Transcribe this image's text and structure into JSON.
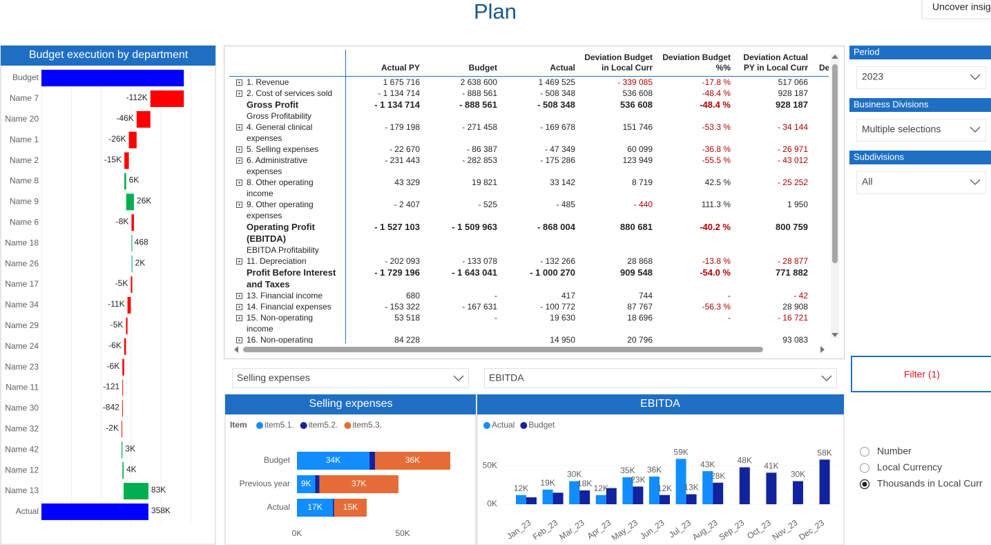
{
  "header": {
    "title": "Plan",
    "button": "Uncover insig"
  },
  "chart_data": [
    {
      "type": "waterfall",
      "title": "Budget execution by department",
      "categories": [
        "Budget",
        "Name 7",
        "Name 20",
        "Name 1",
        "Name 2",
        "Name 8",
        "Name 9",
        "Name 6",
        "Name 18",
        "Name 26",
        "Name 17",
        "Name 34",
        "Name 29",
        "Name 24",
        "Name 23",
        "Name 11",
        "Name 30",
        "Name 32",
        "Name 42",
        "Name 12",
        "Name 13",
        "Actual"
      ],
      "values": [
        476500,
        -112000,
        -46000,
        -26000,
        -15000,
        6000,
        26000,
        -8000,
        468,
        2000,
        -5000,
        -11000,
        -5000,
        -6000,
        -6000,
        -121,
        -842,
        -2000,
        3000,
        4000,
        83000,
        358000
      ],
      "value_labels": [
        null,
        "-112K",
        "-46K",
        "-26K",
        "-15K",
        "6K",
        "26K",
        "-8K",
        "468",
        "2K",
        "-5K",
        "-11K",
        "-5K",
        "-6K",
        "-6K",
        "-121",
        "-842",
        "-2K",
        "3K",
        "4K",
        "83K",
        "358K"
      ],
      "colors": {
        "total": "#0000ff",
        "increase": "#00b050",
        "decrease": "#ff0000"
      },
      "xlim": [
        0,
        550000
      ],
      "xticks": [
        0,
        100000,
        200000,
        300000,
        400000,
        500000
      ],
      "grid": true
    },
    {
      "type": "stacked_hbar",
      "title": "Selling expenses",
      "legend_title": "Item",
      "categories": [
        "Budget",
        "Previous year",
        "Actual"
      ],
      "series": [
        {
          "name": "item5.1.",
          "color": "#118dff",
          "values": [
            34300,
            8600,
            17000
          ],
          "value_labels": [
            "34K",
            "9K",
            "17K"
          ]
        },
        {
          "name": "item5.2.",
          "color": "#12239e",
          "values": [
            2600,
            2000,
            600
          ],
          "value_labels": [
            null,
            null,
            null
          ]
        },
        {
          "name": "item5.3.",
          "color": "#e66c37",
          "values": [
            35600,
            37400,
            15400
          ],
          "value_labels": [
            "36K",
            "37K",
            "15K"
          ]
        }
      ],
      "xlim": [
        0,
        80000
      ],
      "xticks": [
        {
          "value": 0,
          "label": "0K"
        },
        {
          "value": 50000,
          "label": "50K"
        }
      ]
    },
    {
      "type": "grouped_bar",
      "title": "EBITDA",
      "categories": [
        "Jan_23",
        "Feb_23",
        "Mar_23",
        "Apr_23",
        "May_23",
        "Jun_23",
        "Jul_23",
        "Aug_23",
        "Sep_23",
        "Oct_23",
        "Nov_23",
        "Dec_23"
      ],
      "series": [
        {
          "name": "Actual",
          "color": "#118dff",
          "values": [
            12000,
            19000,
            30000,
            12000,
            35000,
            36000,
            59000,
            43000,
            null,
            null,
            null,
            null
          ],
          "value_labels": [
            "12K",
            "19K",
            "30K",
            "12K",
            "35K",
            "36K",
            "59K",
            "43K",
            null,
            null,
            null,
            null
          ]
        },
        {
          "name": "Budget",
          "color": "#12239e",
          "values": [
            9000,
            15000,
            18000,
            21000,
            23000,
            12000,
            13000,
            28000,
            48000,
            41000,
            30000,
            58000
          ],
          "value_labels": [
            null,
            null,
            "18K",
            null,
            "23K",
            "12K",
            "13K",
            "28K",
            "48K",
            "41K",
            "30K",
            "58K"
          ]
        }
      ],
      "ylim": [
        0,
        70000
      ],
      "yticks": [
        {
          "value": 0,
          "label": "0K"
        },
        {
          "value": 50000,
          "label": "50K"
        }
      ],
      "grid": true
    }
  ],
  "table": {
    "columns": [
      "Actual PY",
      "Budget",
      "Actual",
      "Deviation Budget in Local Curr",
      "Deviation Budget %%",
      "Deviation Actual PY in Local Curr",
      "De"
    ],
    "rows": [
      {
        "label": "1. Revenue",
        "cells": [
          "1 675 716",
          "2 638 600",
          "1 469 525",
          "- 339 085",
          "-17.8 %",
          "517 066"
        ]
      },
      {
        "label": "2. Cost of services sold",
        "cells": [
          "- 1 134 714",
          "- 888 561",
          "- 508 348",
          "536 608",
          "-48.4 %",
          "928 187"
        ]
      },
      {
        "label": "Gross Profit",
        "bold": true,
        "cells": [
          "- 1 134 714",
          "- 888 561",
          "- 508 348",
          "536 608",
          "-48.4 %",
          "928 187"
        ]
      },
      {
        "label": "Gross Profitability"
      },
      {
        "label": "4. General clinical expenses",
        "cells": [
          "- 179 198",
          "- 271 458",
          "- 169 678",
          "151 746",
          "-53.3 %",
          "- 34 144"
        ]
      },
      {
        "label": "5. Selling expenses",
        "cells": [
          "- 22 670",
          "- 86 387",
          "- 47 349",
          "60 099",
          "-36.8 %",
          "- 26 971"
        ]
      },
      {
        "label": "6. Administrative expenses",
        "cells": [
          "- 231 443",
          "- 282 853",
          "- 175 286",
          "123 949",
          "-55.5 %",
          "- 43 012"
        ]
      },
      {
        "label": "8. Other operating income",
        "cells": [
          "43 329",
          "19 821",
          "33 142",
          "8 719",
          "42.5 %",
          "- 25 252"
        ]
      },
      {
        "label": "9. Other operating expenses",
        "cells": [
          "- 2 407",
          "- 525",
          "- 485",
          "- 440",
          "111.3 %",
          "1 950"
        ]
      },
      {
        "label": "Operating Profit (EBITDA)",
        "bold": true,
        "cells": [
          "- 1 527 103",
          "- 1 509 963",
          "- 868 004",
          "880 681",
          "-40.2 %",
          "800 759"
        ]
      },
      {
        "label": "EBITDA Profitability"
      },
      {
        "label": "11. Depreciation",
        "cells": [
          "- 202 093",
          "- 133 078",
          "- 132 266",
          "28 868",
          "-13.8 %",
          "- 28 877"
        ]
      },
      {
        "label": "Profit Before Interest and Taxes",
        "bold": true,
        "cells": [
          "- 1 729 196",
          "- 1 643 041",
          "- 1 000 270",
          "909 548",
          "-54.0 %",
          "771 882"
        ]
      },
      {
        "label": "13. Financial income",
        "cells": [
          "680",
          "-",
          "417",
          "744",
          "-",
          "- 42"
        ]
      },
      {
        "label": "14. Financial expenses",
        "cells": [
          "- 153 322",
          "- 167 631",
          "- 100 772",
          "87 767",
          "-56.3 %",
          "28 908"
        ]
      },
      {
        "label": "15. Non-operating income",
        "cells": [
          "53 518",
          "-",
          "19 630",
          "18 696",
          "-",
          "- 16 721"
        ]
      },
      {
        "label": "16. Non-operating",
        "cells": [
          "84 228",
          null,
          "14 950",
          "20 796",
          null,
          "93 083"
        ]
      }
    ]
  },
  "slicers": [
    {
      "title": "Period",
      "value": "2023"
    },
    {
      "title": "Business Divisions",
      "value": "Multiple selections"
    },
    {
      "title": "Subdivisions",
      "value": "All"
    }
  ],
  "filter_button": "Filter (1)",
  "dropdowns": [
    "Selling expenses",
    "EBITDA"
  ],
  "radio": {
    "options": [
      "Number",
      "Local Currency",
      "Thousands in Local Curr"
    ],
    "selected": 2
  }
}
